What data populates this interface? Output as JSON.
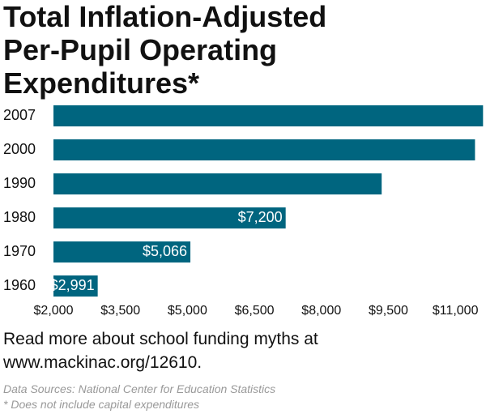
{
  "chart_data": {
    "type": "bar",
    "orientation": "horizontal",
    "title": "Total Inflation-Adjusted Per-Pupil Operating Expenditures*",
    "categories": [
      "2007",
      "2000",
      "1990",
      "1980",
      "1970",
      "1960"
    ],
    "values": [
      11620,
      11440,
      9350,
      7200,
      5066,
      2991
    ],
    "value_labels": [
      null,
      null,
      null,
      "$7,200",
      "$5,066",
      "$2,991"
    ],
    "color": "#00657f",
    "xlim": [
      2000,
      11650
    ],
    "xticks": [
      {
        "value": 2000,
        "label": "$2,000"
      },
      {
        "value": 3500,
        "label": "$3,500"
      },
      {
        "value": 5000,
        "label": "$5,000"
      },
      {
        "value": 6500,
        "label": "$6,500"
      },
      {
        "value": 8000,
        "label": "$8,000"
      },
      {
        "value": 9500,
        "label": "$9,500"
      },
      {
        "value": 11000,
        "label": "$11,000"
      }
    ],
    "note": "Read more about school funding myths at www.mackinac.org/12610.",
    "sources": "Data Sources: National Center for Education Statistics",
    "footnote": "* Does not include capital expenditures"
  }
}
